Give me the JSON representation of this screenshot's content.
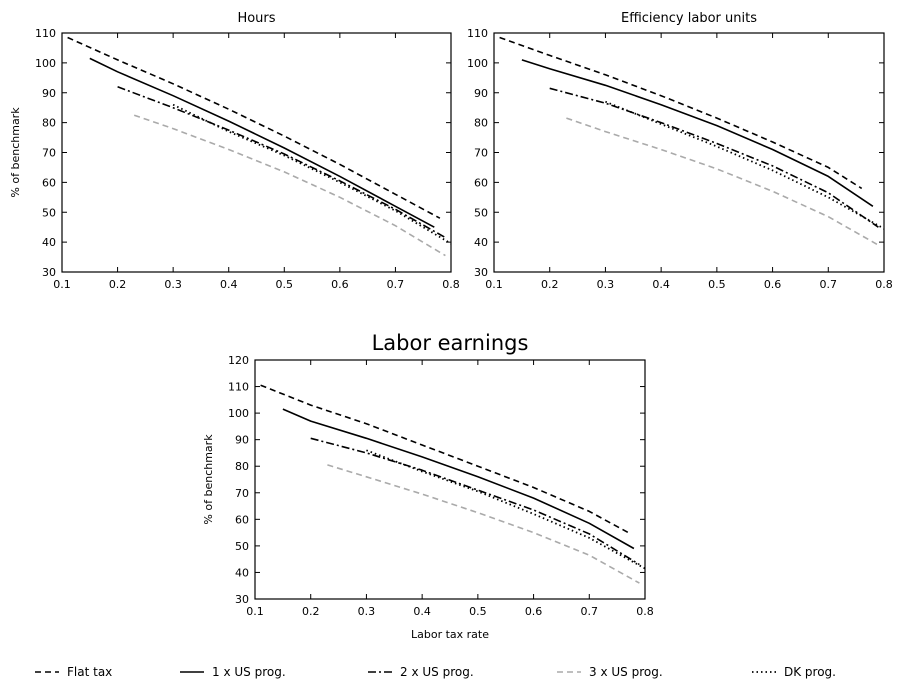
{
  "legend": [
    {
      "label": "Flat tax",
      "style": "dashed",
      "color": "#000000"
    },
    {
      "label": "1 x US prog.",
      "style": "solid",
      "color": "#000000"
    },
    {
      "label": "2 x US prog.",
      "style": "dashdot",
      "color": "#000000"
    },
    {
      "label": "3 x US prog.",
      "style": "dashed",
      "color": "#aaaaaa"
    },
    {
      "label": "DK prog.",
      "style": "dotted",
      "color": "#000000"
    }
  ],
  "chart_data": [
    {
      "type": "line",
      "title": "Hours",
      "xlabel": "",
      "ylabel": "% of benchmark",
      "xlim": [
        0.1,
        0.8
      ],
      "ylim": [
        30,
        110
      ],
      "xticks": [
        "0.1",
        "0.2",
        "0.3",
        "0.4",
        "0.5",
        "0.6",
        "0.7",
        "0.8"
      ],
      "yticks": [
        "30",
        "40",
        "50",
        "60",
        "70",
        "80",
        "90",
        "100",
        "110"
      ],
      "grid": false,
      "series": [
        {
          "name": "Flat tax",
          "x": [
            0.11,
            0.2,
            0.3,
            0.4,
            0.5,
            0.6,
            0.7,
            0.78
          ],
          "y": [
            108.5,
            101,
            93,
            84.5,
            75.5,
            66,
            56,
            48
          ]
        },
        {
          "name": "1 x US prog.",
          "x": [
            0.15,
            0.2,
            0.3,
            0.4,
            0.5,
            0.6,
            0.7,
            0.77
          ],
          "y": [
            101.5,
            97,
            89,
            80.5,
            71.5,
            62,
            52,
            45
          ]
        },
        {
          "name": "2 x US prog.",
          "x": [
            0.2,
            0.3,
            0.4,
            0.5,
            0.6,
            0.7,
            0.79
          ],
          "y": [
            92,
            85,
            77.5,
            69.5,
            60.5,
            51,
            41.5
          ]
        },
        {
          "name": "3 x US prog.",
          "x": [
            0.23,
            0.3,
            0.4,
            0.5,
            0.6,
            0.7,
            0.79
          ],
          "y": [
            82.5,
            78,
            71,
            63.5,
            55,
            45.5,
            35.5
          ]
        },
        {
          "name": "DK prog.",
          "x": [
            0.3,
            0.4,
            0.5,
            0.6,
            0.7,
            0.8
          ],
          "y": [
            86,
            77,
            69,
            60,
            50.5,
            39.5
          ]
        }
      ]
    },
    {
      "type": "line",
      "title": "Efficiency labor units",
      "xlabel": "",
      "ylabel": "",
      "xlim": [
        0.1,
        0.8
      ],
      "ylim": [
        30,
        110
      ],
      "xticks": [
        "0.1",
        "0.2",
        "0.3",
        "0.4",
        "0.5",
        "0.6",
        "0.7",
        "0.8"
      ],
      "yticks": [
        "30",
        "40",
        "50",
        "60",
        "70",
        "80",
        "90",
        "100",
        "110"
      ],
      "grid": false,
      "series": [
        {
          "name": "Flat tax",
          "x": [
            0.11,
            0.2,
            0.3,
            0.4,
            0.5,
            0.6,
            0.7,
            0.76
          ],
          "y": [
            108.5,
            102.5,
            96,
            89,
            81.5,
            73.5,
            65,
            58
          ]
        },
        {
          "name": "1 x US prog.",
          "x": [
            0.15,
            0.2,
            0.3,
            0.4,
            0.5,
            0.6,
            0.7,
            0.78
          ],
          "y": [
            101,
            98,
            92.5,
            86,
            79,
            71,
            62,
            52
          ]
        },
        {
          "name": "2 x US prog.",
          "x": [
            0.2,
            0.3,
            0.4,
            0.5,
            0.6,
            0.7,
            0.79
          ],
          "y": [
            91.5,
            86.5,
            80,
            73,
            65.5,
            56.5,
            45
          ]
        },
        {
          "name": "3 x US prog.",
          "x": [
            0.23,
            0.3,
            0.4,
            0.5,
            0.6,
            0.7,
            0.79
          ],
          "y": [
            81.5,
            77,
            71,
            64.5,
            57,
            48.5,
            39
          ]
        },
        {
          "name": "DK prog.",
          "x": [
            0.3,
            0.4,
            0.5,
            0.6,
            0.7,
            0.8
          ],
          "y": [
            87,
            79.5,
            72,
            64,
            55,
            44.5
          ]
        }
      ]
    },
    {
      "type": "line",
      "title": "Labor earnings",
      "xlabel": "Labor tax rate",
      "ylabel": "% of benchmark",
      "xlim": [
        0.1,
        0.8
      ],
      "ylim": [
        30,
        120
      ],
      "xticks": [
        "0.1",
        "0.2",
        "0.3",
        "0.4",
        "0.5",
        "0.6",
        "0.7",
        "0.8"
      ],
      "yticks": [
        "30",
        "40",
        "50",
        "60",
        "70",
        "80",
        "90",
        "100",
        "110",
        "120"
      ],
      "grid": false,
      "series": [
        {
          "name": "Flat tax",
          "x": [
            0.11,
            0.2,
            0.3,
            0.4,
            0.5,
            0.6,
            0.7,
            0.77
          ],
          "y": [
            110.5,
            103,
            96,
            88,
            80,
            72,
            63,
            55
          ]
        },
        {
          "name": "1 x US prog.",
          "x": [
            0.15,
            0.2,
            0.3,
            0.4,
            0.5,
            0.6,
            0.7,
            0.78
          ],
          "y": [
            101.5,
            97,
            90.5,
            83.5,
            76,
            68,
            58.5,
            49
          ]
        },
        {
          "name": "2 x US prog.",
          "x": [
            0.2,
            0.3,
            0.4,
            0.5,
            0.6,
            0.7,
            0.79
          ],
          "y": [
            90.5,
            85,
            78.5,
            71,
            63.5,
            54.5,
            43
          ]
        },
        {
          "name": "3 x US prog.",
          "x": [
            0.23,
            0.3,
            0.4,
            0.5,
            0.6,
            0.7,
            0.79
          ],
          "y": [
            80.5,
            76,
            69.5,
            62.5,
            55,
            46.5,
            36
          ]
        },
        {
          "name": "DK prog.",
          "x": [
            0.3,
            0.4,
            0.5,
            0.6,
            0.7,
            0.8
          ],
          "y": [
            86,
            78,
            70.5,
            62,
            53,
            41.5
          ]
        }
      ]
    }
  ]
}
